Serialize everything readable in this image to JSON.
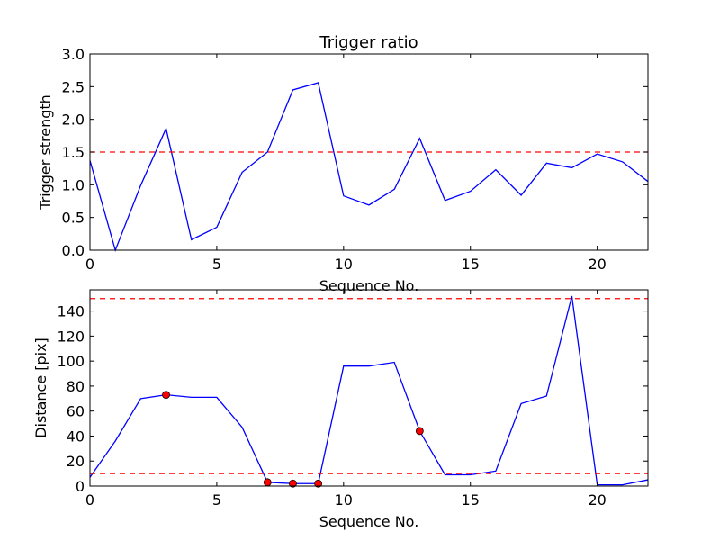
{
  "chart_data": [
    {
      "type": "line",
      "title": "Trigger ratio",
      "xlabel": "Sequence No.",
      "ylabel": "Trigger strength",
      "xlim": [
        0,
        22
      ],
      "ylim": [
        0,
        3
      ],
      "xticks": [
        0,
        5,
        10,
        15,
        20
      ],
      "xtick_labels": [
        "0",
        "5",
        "10",
        "15",
        "20"
      ],
      "yticks": [
        0,
        0.5,
        1,
        1.5,
        2,
        2.5,
        3
      ],
      "ytick_labels": [
        "0.0",
        "0.5",
        "1.0",
        "1.5",
        "2.0",
        "2.5",
        "3.0"
      ],
      "grid": false,
      "series": [
        {
          "color": "#0000ff",
          "style": "solid",
          "x": [
            0,
            1,
            2,
            3,
            4,
            5,
            6,
            7,
            8,
            9,
            10,
            11,
            12,
            13,
            14,
            15,
            16,
            17,
            18,
            19,
            20,
            21,
            22
          ],
          "y": [
            1.37,
            0.0,
            0.99,
            1.86,
            0.16,
            0.35,
            1.19,
            1.5,
            2.45,
            2.56,
            0.83,
            0.69,
            0.93,
            1.71,
            0.76,
            0.9,
            1.23,
            0.84,
            1.33,
            1.26,
            1.47,
            1.35,
            1.05
          ]
        }
      ],
      "hlines": [
        {
          "y": 1.5,
          "color": "#ff0000",
          "style": "dashed"
        }
      ]
    },
    {
      "type": "line",
      "title": "",
      "xlabel": "Sequence No.",
      "ylabel": "Distance [pix]",
      "xlim": [
        0,
        22
      ],
      "ylim": [
        0,
        157
      ],
      "xticks": [
        0,
        5,
        10,
        15,
        20
      ],
      "xtick_labels": [
        "0",
        "5",
        "10",
        "15",
        "20"
      ],
      "yticks": [
        0,
        20,
        40,
        60,
        80,
        100,
        120,
        140
      ],
      "ytick_labels": [
        "0",
        "20",
        "40",
        "60",
        "80",
        "100",
        "120",
        "140"
      ],
      "grid": false,
      "series": [
        {
          "color": "#0000ff",
          "style": "solid",
          "x": [
            0,
            1,
            2,
            3,
            4,
            5,
            6,
            7,
            8,
            9,
            10,
            11,
            12,
            13,
            14,
            15,
            16,
            17,
            18,
            19,
            20,
            21,
            22
          ],
          "y": [
            7,
            36,
            70,
            73,
            71,
            71,
            47,
            3,
            2,
            2,
            96,
            96,
            99,
            44,
            9,
            9,
            12,
            66,
            72,
            152,
            1,
            1,
            5
          ]
        }
      ],
      "markers": {
        "color": "#ff0000",
        "x": [
          3,
          7,
          8,
          9,
          13
        ],
        "y": [
          73,
          3,
          2,
          2,
          44
        ]
      },
      "hlines": [
        {
          "y": 10,
          "color": "#ff0000",
          "style": "dashed"
        },
        {
          "y": 150,
          "color": "#ff0000",
          "style": "dashed"
        }
      ]
    }
  ]
}
